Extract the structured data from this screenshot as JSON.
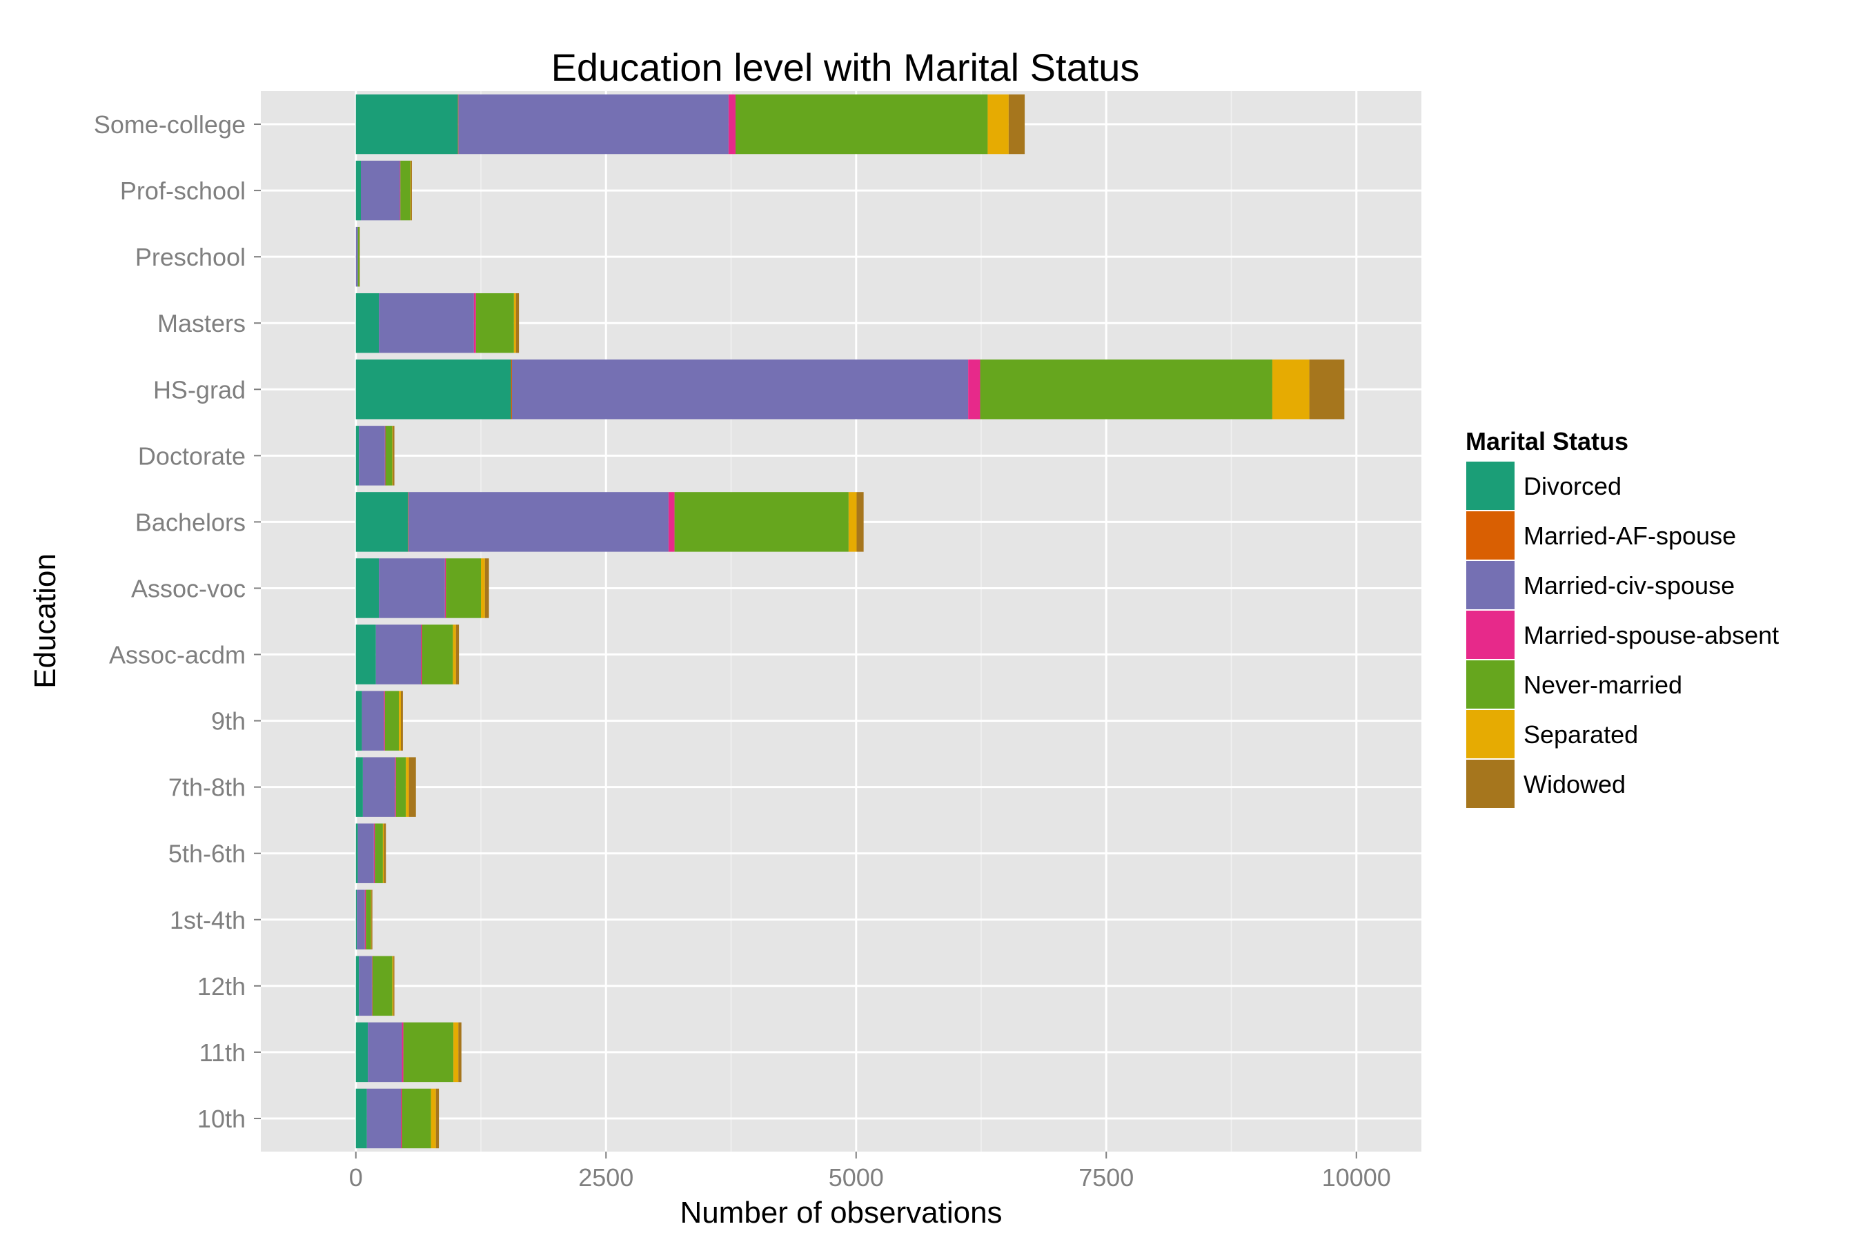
{
  "chart_data": {
    "type": "bar",
    "orientation": "horizontal",
    "stacked": true,
    "title": "Education level with Marital Status",
    "xlabel": "Number of observations",
    "ylabel": "Education",
    "xlim": [
      -950,
      10650
    ],
    "xticks": [
      0,
      2500,
      5000,
      7500,
      10000
    ],
    "xtick_labels": [
      "0",
      "2500",
      "5000",
      "7500",
      "10000"
    ],
    "grid": true,
    "legend_position": "right",
    "legend_title": "Marital Status",
    "categories": [
      "Some-college",
      "Prof-school",
      "Preschool",
      "Masters",
      "HS-grad",
      "Doctorate",
      "Bachelors",
      "Assoc-voc",
      "Assoc-acdm",
      "9th",
      "7th-8th",
      "5th-6th",
      "1st-4th",
      "12th",
      "11th",
      "10th"
    ],
    "series": [
      {
        "name": "Divorced",
        "color": "#1B9E77",
        "values": [
          1020,
          50,
          0,
          230,
          1550,
          30,
          520,
          230,
          200,
          60,
          70,
          20,
          10,
          30,
          120,
          110
        ]
      },
      {
        "name": "Married-AF-spouse",
        "color": "#D95F02",
        "values": [
          5,
          0,
          0,
          0,
          10,
          0,
          5,
          0,
          0,
          0,
          0,
          0,
          0,
          0,
          0,
          0
        ]
      },
      {
        "name": "Married-civ-spouse",
        "color": "#7570B3",
        "values": [
          2700,
          390,
          20,
          950,
          4560,
          260,
          2600,
          660,
          450,
          220,
          320,
          160,
          80,
          130,
          340,
          340
        ]
      },
      {
        "name": "Married-spouse-absent",
        "color": "#E7298A",
        "values": [
          70,
          5,
          0,
          20,
          120,
          5,
          60,
          10,
          10,
          10,
          10,
          10,
          10,
          5,
          15,
          10
        ]
      },
      {
        "name": "Never-married",
        "color": "#66A61E",
        "values": [
          2520,
          100,
          15,
          380,
          2920,
          70,
          1740,
          350,
          310,
          140,
          100,
          80,
          50,
          200,
          500,
          290
        ]
      },
      {
        "name": "Separated",
        "color": "#E6AB02",
        "values": [
          210,
          5,
          0,
          20,
          370,
          5,
          80,
          40,
          30,
          20,
          30,
          10,
          5,
          10,
          50,
          50
        ]
      },
      {
        "name": "Widowed",
        "color": "#A6761D",
        "values": [
          160,
          10,
          5,
          30,
          350,
          15,
          70,
          40,
          30,
          20,
          70,
          20,
          10,
          10,
          30,
          30
        ]
      }
    ]
  }
}
